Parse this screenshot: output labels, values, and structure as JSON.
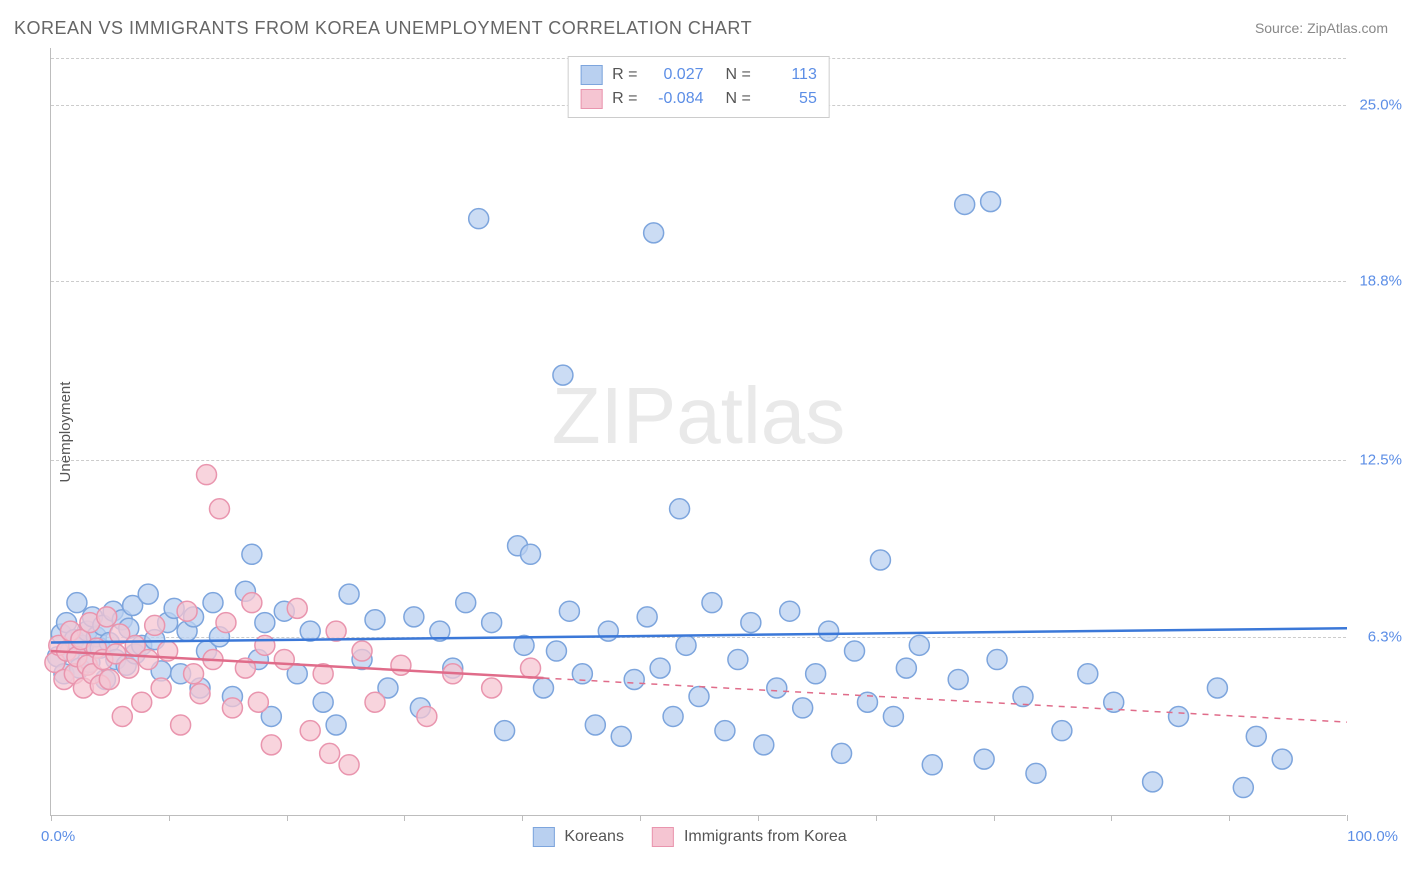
{
  "title": "KOREAN VS IMMIGRANTS FROM KOREA UNEMPLOYMENT CORRELATION CHART",
  "source": "Source: ZipAtlas.com",
  "watermark_bold": "ZIP",
  "watermark_light": "atlas",
  "chart": {
    "type": "scatter",
    "xlim": [
      0,
      100
    ],
    "ylim": [
      0,
      27
    ],
    "x_ticks_label_low": "0.0%",
    "x_ticks_label_high": "100.0%",
    "x_tick_positions": [
      0,
      9.09,
      18.18,
      27.27,
      36.36,
      45.45,
      54.55,
      63.64,
      72.73,
      81.82,
      90.91,
      100
    ],
    "y_gridlines": [
      {
        "value": 6.3,
        "label": "6.3%"
      },
      {
        "value": 12.5,
        "label": "12.5%"
      },
      {
        "value": 18.8,
        "label": "18.8%"
      },
      {
        "value": 25.0,
        "label": "25.0%"
      }
    ],
    "ylabel": "Unemployment",
    "background": "#ffffff",
    "grid_color": "#cccccc",
    "axis_color": "#bdbdbd",
    "marker_radius": 10,
    "marker_stroke_width": 1.5,
    "trend_line_width": 2.5,
    "series": [
      {
        "name": "Koreans",
        "fill": "#b9d0f0",
        "stroke": "#7da5dd",
        "trend_color": "#3b78d8",
        "trend_solid_until_x": 100,
        "trend_y_start": 6.1,
        "trend_y_end": 6.6,
        "R": "0.027",
        "N": "113",
        "points": [
          [
            0.5,
            5.6
          ],
          [
            0.8,
            6.4
          ],
          [
            1.0,
            5.0
          ],
          [
            1.2,
            6.8
          ],
          [
            1.5,
            5.8
          ],
          [
            1.8,
            6.2
          ],
          [
            2.0,
            7.5
          ],
          [
            2.2,
            5.2
          ],
          [
            2.5,
            6.0
          ],
          [
            2.8,
            6.5
          ],
          [
            3.0,
            5.4
          ],
          [
            3.2,
            7.0
          ],
          [
            3.5,
            6.3
          ],
          [
            3.8,
            5.9
          ],
          [
            4.0,
            6.7
          ],
          [
            4.2,
            4.8
          ],
          [
            4.5,
            6.1
          ],
          [
            4.8,
            7.2
          ],
          [
            5.0,
            5.5
          ],
          [
            5.5,
            6.9
          ],
          [
            5.8,
            5.3
          ],
          [
            6.0,
            6.6
          ],
          [
            6.3,
            7.4
          ],
          [
            6.5,
            5.7
          ],
          [
            7.0,
            6.0
          ],
          [
            7.5,
            7.8
          ],
          [
            8.0,
            6.2
          ],
          [
            8.5,
            5.1
          ],
          [
            9.0,
            6.8
          ],
          [
            9.5,
            7.3
          ],
          [
            10.0,
            5.0
          ],
          [
            10.5,
            6.5
          ],
          [
            11.0,
            7.0
          ],
          [
            11.5,
            4.5
          ],
          [
            12.0,
            5.8
          ],
          [
            12.5,
            7.5
          ],
          [
            13.0,
            6.3
          ],
          [
            14.0,
            4.2
          ],
          [
            15.0,
            7.9
          ],
          [
            15.5,
            9.2
          ],
          [
            16.0,
            5.5
          ],
          [
            16.5,
            6.8
          ],
          [
            17.0,
            3.5
          ],
          [
            18.0,
            7.2
          ],
          [
            19.0,
            5.0
          ],
          [
            20.0,
            6.5
          ],
          [
            21.0,
            4.0
          ],
          [
            22.0,
            3.2
          ],
          [
            23.0,
            7.8
          ],
          [
            24.0,
            5.5
          ],
          [
            25.0,
            6.9
          ],
          [
            26.0,
            4.5
          ],
          [
            28.0,
            7.0
          ],
          [
            28.5,
            3.8
          ],
          [
            30.0,
            6.5
          ],
          [
            31.0,
            5.2
          ],
          [
            32.0,
            7.5
          ],
          [
            33.0,
            21.0
          ],
          [
            34.0,
            6.8
          ],
          [
            35.0,
            3.0
          ],
          [
            36.0,
            9.5
          ],
          [
            36.5,
            6.0
          ],
          [
            37.0,
            9.2
          ],
          [
            38.0,
            4.5
          ],
          [
            39.0,
            5.8
          ],
          [
            39.5,
            15.5
          ],
          [
            40.0,
            7.2
          ],
          [
            41.0,
            5.0
          ],
          [
            42.0,
            3.2
          ],
          [
            43.0,
            6.5
          ],
          [
            44.0,
            2.8
          ],
          [
            45.0,
            4.8
          ],
          [
            46.0,
            7.0
          ],
          [
            46.5,
            20.5
          ],
          [
            47.0,
            5.2
          ],
          [
            48.0,
            3.5
          ],
          [
            48.5,
            10.8
          ],
          [
            49.0,
            6.0
          ],
          [
            50.0,
            4.2
          ],
          [
            51.0,
            7.5
          ],
          [
            52.0,
            3.0
          ],
          [
            53.0,
            5.5
          ],
          [
            54.0,
            6.8
          ],
          [
            55.0,
            2.5
          ],
          [
            56.0,
            4.5
          ],
          [
            57.0,
            7.2
          ],
          [
            58.0,
            3.8
          ],
          [
            59.0,
            5.0
          ],
          [
            60.0,
            6.5
          ],
          [
            61.0,
            2.2
          ],
          [
            62.0,
            5.8
          ],
          [
            63.0,
            4.0
          ],
          [
            64.0,
            9.0
          ],
          [
            65.0,
            3.5
          ],
          [
            66.0,
            5.2
          ],
          [
            67.0,
            6.0
          ],
          [
            68.0,
            1.8
          ],
          [
            70.0,
            4.8
          ],
          [
            72.0,
            2.0
          ],
          [
            73.0,
            5.5
          ],
          [
            75.0,
            4.2
          ],
          [
            76.0,
            1.5
          ],
          [
            78.0,
            3.0
          ],
          [
            70.5,
            21.5
          ],
          [
            72.5,
            21.6
          ],
          [
            80.0,
            5.0
          ],
          [
            82.0,
            4.0
          ],
          [
            85.0,
            1.2
          ],
          [
            87.0,
            3.5
          ],
          [
            90.0,
            4.5
          ],
          [
            92.0,
            1.0
          ],
          [
            93.0,
            2.8
          ],
          [
            95.0,
            2.0
          ]
        ]
      },
      {
        "name": "Immigrants from Korea",
        "fill": "#f5c5d2",
        "stroke": "#e995ae",
        "trend_color": "#e06c8a",
        "trend_solid_until_x": 38,
        "trend_y_start": 5.8,
        "trend_y_end": 3.3,
        "R": "-0.084",
        "N": "55",
        "points": [
          [
            0.3,
            5.4
          ],
          [
            0.6,
            6.0
          ],
          [
            1.0,
            4.8
          ],
          [
            1.2,
            5.8
          ],
          [
            1.5,
            6.5
          ],
          [
            1.8,
            5.0
          ],
          [
            2.0,
            5.6
          ],
          [
            2.3,
            6.2
          ],
          [
            2.5,
            4.5
          ],
          [
            2.8,
            5.3
          ],
          [
            3.0,
            6.8
          ],
          [
            3.2,
            5.0
          ],
          [
            3.5,
            5.9
          ],
          [
            3.8,
            4.6
          ],
          [
            4.0,
            5.5
          ],
          [
            4.3,
            7.0
          ],
          [
            4.5,
            4.8
          ],
          [
            5.0,
            5.7
          ],
          [
            5.3,
            6.4
          ],
          [
            5.5,
            3.5
          ],
          [
            6.0,
            5.2
          ],
          [
            6.5,
            6.0
          ],
          [
            7.0,
            4.0
          ],
          [
            7.5,
            5.5
          ],
          [
            8.0,
            6.7
          ],
          [
            8.5,
            4.5
          ],
          [
            9.0,
            5.8
          ],
          [
            10.0,
            3.2
          ],
          [
            10.5,
            7.2
          ],
          [
            11.0,
            5.0
          ],
          [
            11.5,
            4.3
          ],
          [
            12.0,
            12.0
          ],
          [
            12.5,
            5.5
          ],
          [
            13.0,
            10.8
          ],
          [
            13.5,
            6.8
          ],
          [
            14.0,
            3.8
          ],
          [
            15.0,
            5.2
          ],
          [
            15.5,
            7.5
          ],
          [
            16.0,
            4.0
          ],
          [
            16.5,
            6.0
          ],
          [
            17.0,
            2.5
          ],
          [
            18.0,
            5.5
          ],
          [
            19.0,
            7.3
          ],
          [
            20.0,
            3.0
          ],
          [
            21.0,
            5.0
          ],
          [
            21.5,
            2.2
          ],
          [
            22.0,
            6.5
          ],
          [
            23.0,
            1.8
          ],
          [
            24.0,
            5.8
          ],
          [
            25.0,
            4.0
          ],
          [
            27.0,
            5.3
          ],
          [
            29.0,
            3.5
          ],
          [
            31.0,
            5.0
          ],
          [
            34.0,
            4.5
          ],
          [
            37.0,
            5.2
          ]
        ]
      }
    ],
    "legend_bottom": [
      {
        "label": "Koreans",
        "fill": "#b9d0f0",
        "stroke": "#7da5dd"
      },
      {
        "label": "Immigrants from Korea",
        "fill": "#f5c5d2",
        "stroke": "#e995ae"
      }
    ]
  }
}
